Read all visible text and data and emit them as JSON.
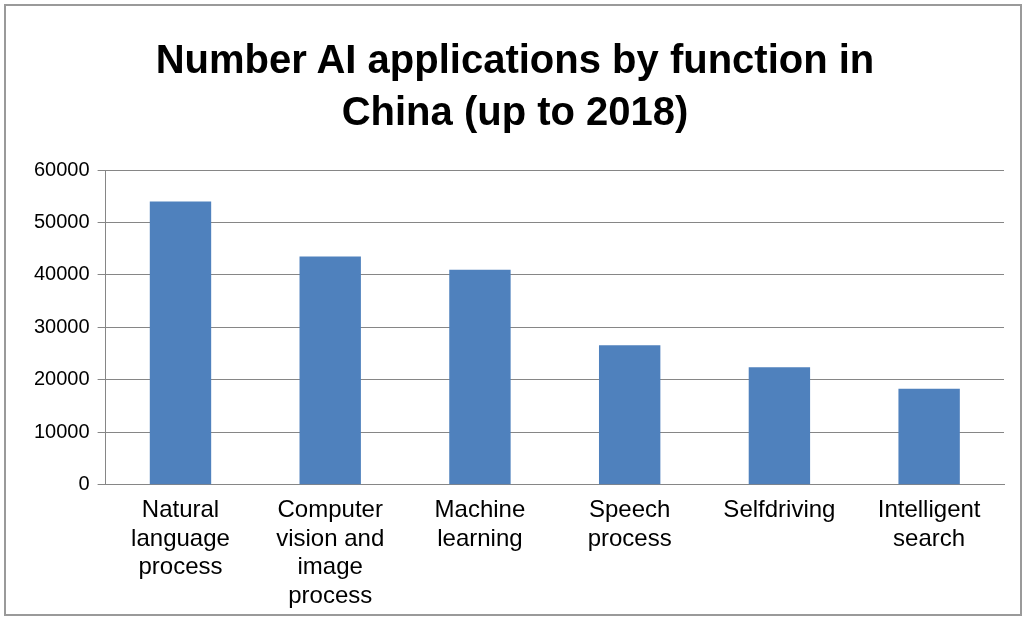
{
  "chart_data": {
    "type": "bar",
    "title": "Number AI applications by function in China (up to 2018)",
    "categories": [
      "Natural language process",
      "Computer vision and image process",
      "Machine learning",
      "Speech process",
      "Selfdriving",
      "Intelligent search"
    ],
    "values": [
      54000,
      43500,
      41000,
      26600,
      22400,
      18300
    ],
    "color": "#4f81bd",
    "ylim": [
      0,
      60000
    ],
    "yticks": [
      0,
      10000,
      20000,
      30000,
      40000,
      50000,
      60000
    ],
    "grid": "y",
    "legend": false
  }
}
